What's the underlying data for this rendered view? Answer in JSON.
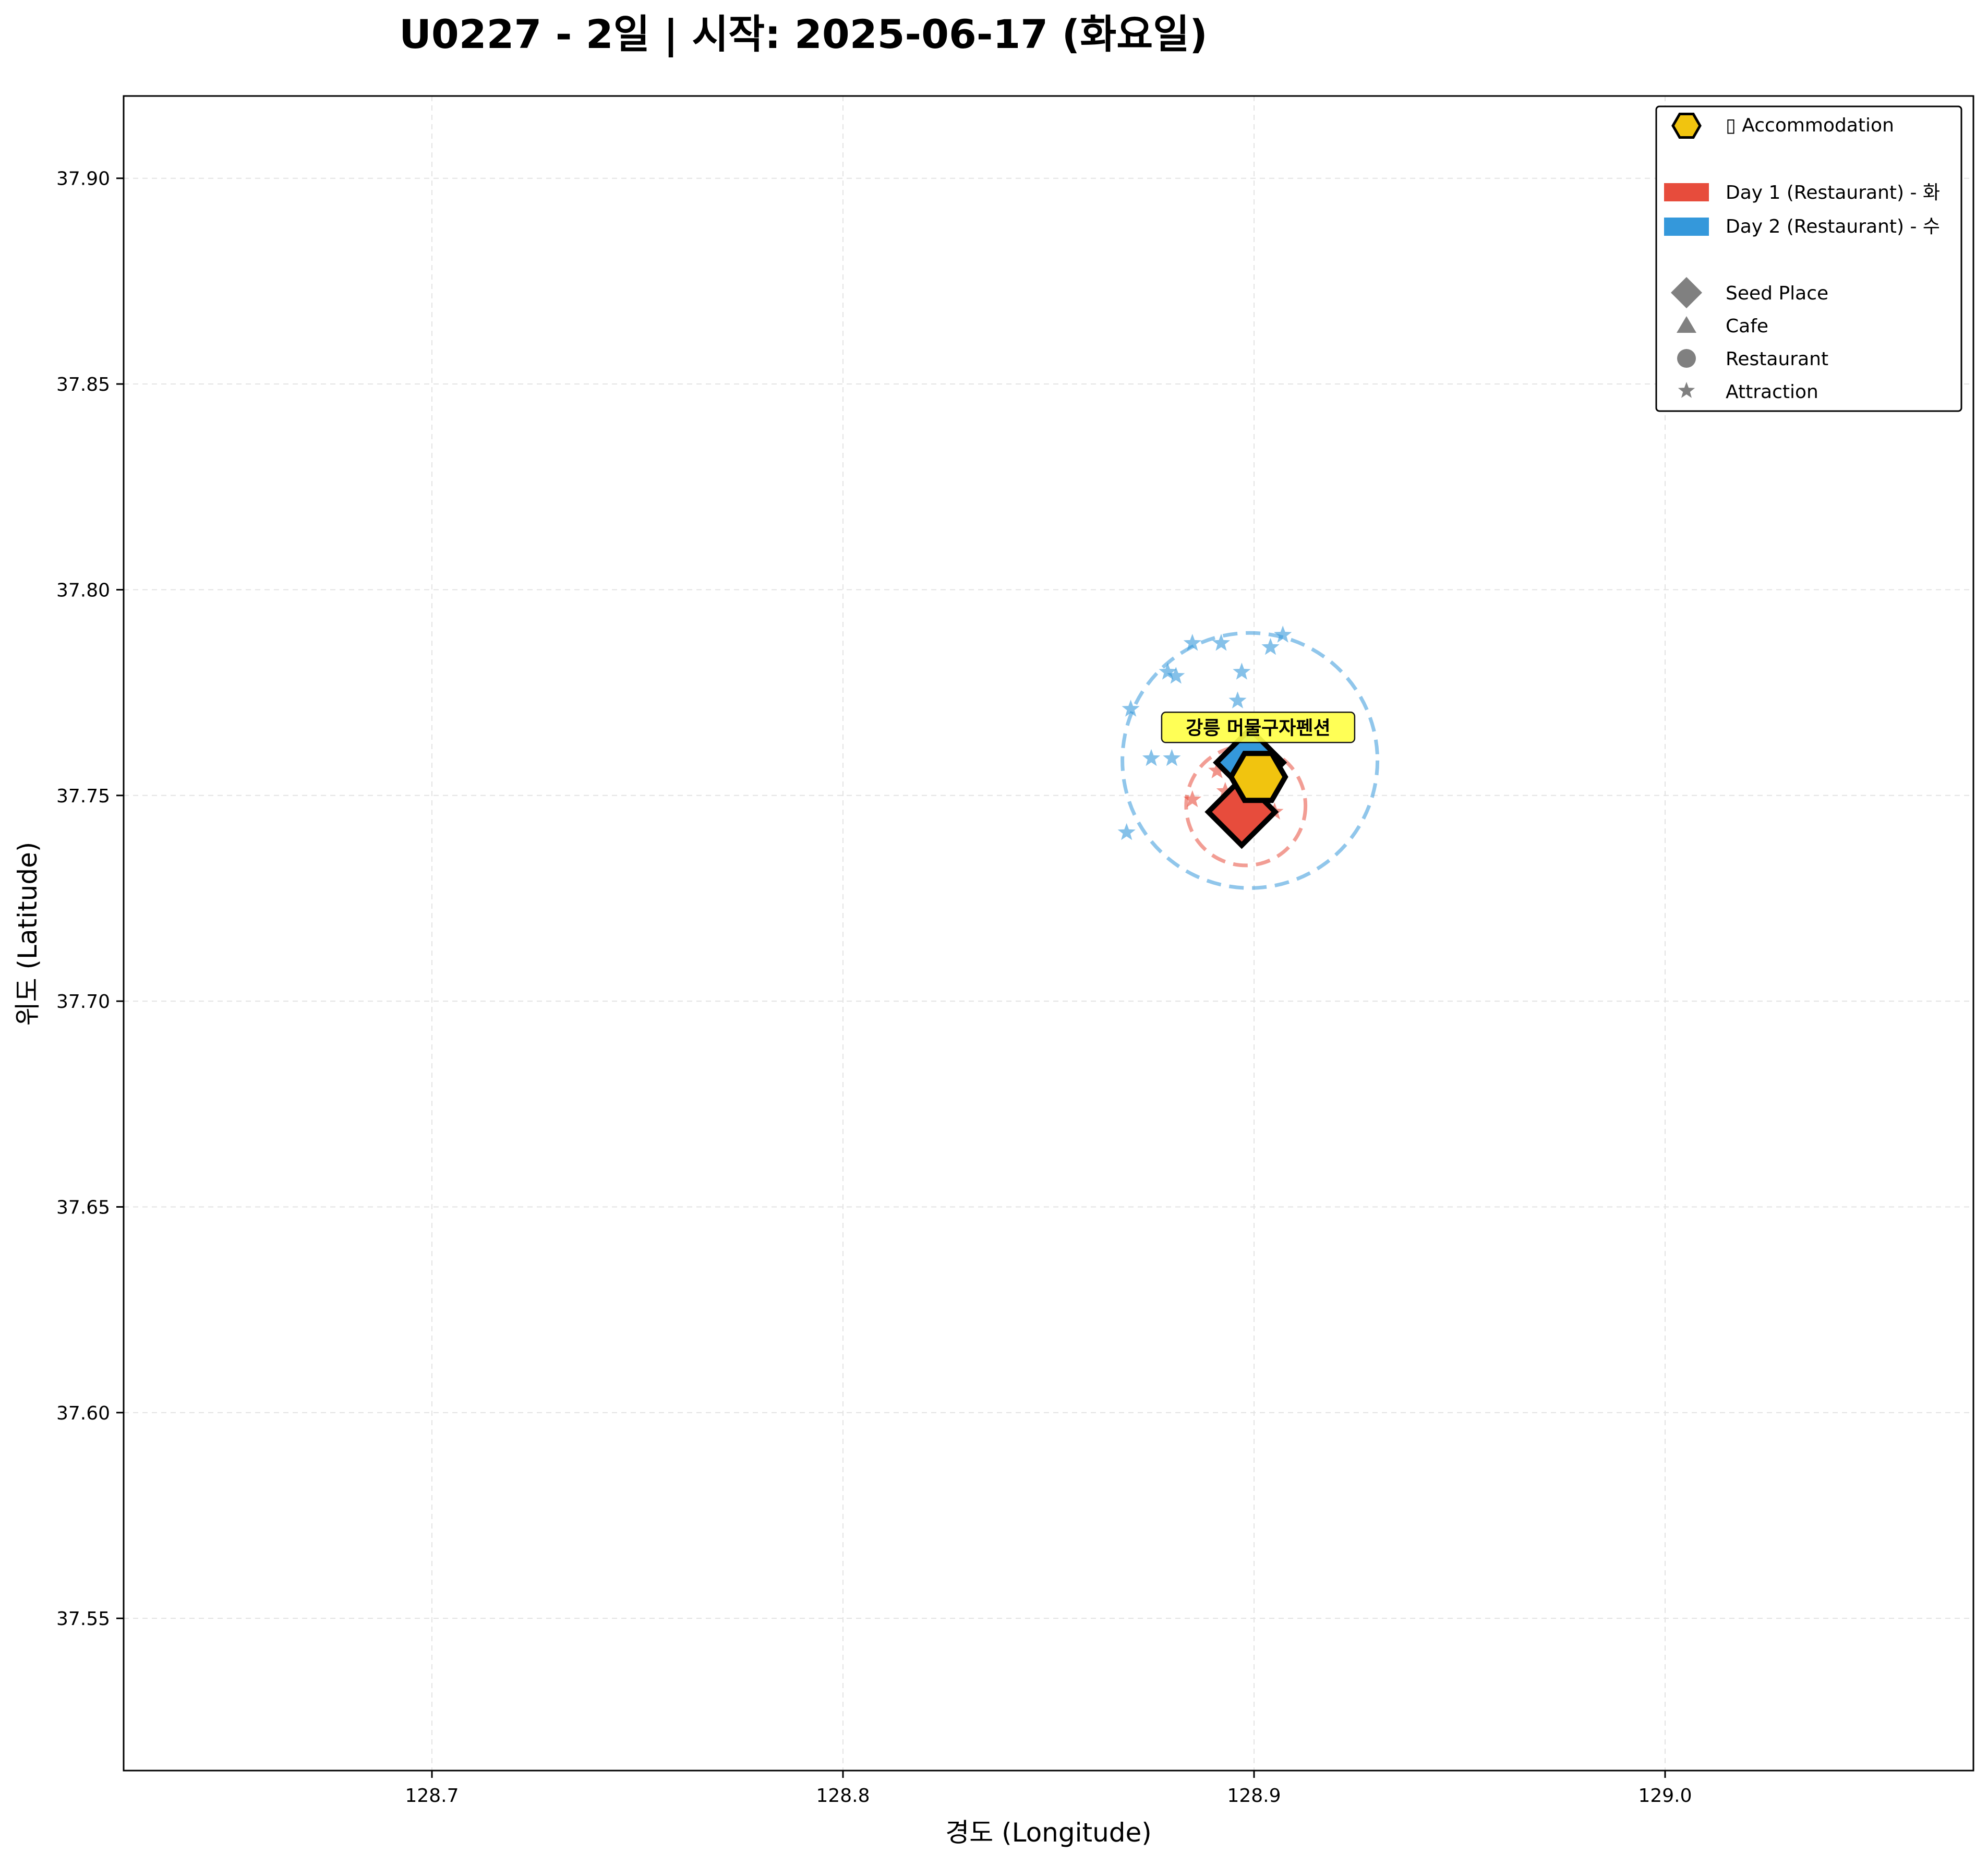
{
  "chart_data": {
    "type": "scatter",
    "title": "U0227 - 2일 | 시작: 2025-06-17 (화요일)",
    "xlabel": "경도 (Longitude)",
    "ylabel": "위도 (Latitude)",
    "xlim": [
      128.625,
      129.075
    ],
    "ylim": [
      37.513,
      37.92
    ],
    "x_ticks": [
      "128.7",
      "128.8",
      "128.9",
      "129.0"
    ],
    "y_ticks": [
      "37.55",
      "37.60",
      "37.65",
      "37.70",
      "37.75",
      "37.80",
      "37.85",
      "37.90"
    ],
    "grid": true,
    "legend_position": "top-right",
    "legend": {
      "accommodation": "▯ Accommodation",
      "days": [
        "Day 1 (Restaurant) - 화",
        "Day 2 (Restaurant) - 수"
      ],
      "types": [
        "Seed Place",
        "Cafe",
        "Restaurant",
        "Attraction"
      ]
    },
    "colors": {
      "day1": "#e74c3c",
      "day2": "#3498db",
      "accommodation": "#f1c40f",
      "annotation_bg": "#ffff44",
      "legend_marker": "#808080"
    },
    "accommodation": {
      "name": "강릉 머물구자펜션",
      "lon": 128.901,
      "lat": 37.7545
    },
    "series": [
      {
        "name": "Day 1 (Restaurant) - 화",
        "color_key": "day1",
        "seed": {
          "lon": 128.897,
          "lat": 37.746
        },
        "radius_circle": {
          "lon": 128.898,
          "lat": 37.7475,
          "radius_lat": 0.0145
        },
        "attractions": [
          {
            "lon": 128.885,
            "lat": 37.749
          },
          {
            "lon": 128.891,
            "lat": 37.756
          },
          {
            "lon": 128.893,
            "lat": 37.751
          },
          {
            "lon": 128.905,
            "lat": 37.746
          },
          {
            "lon": 128.902,
            "lat": 37.752
          }
        ]
      },
      {
        "name": "Day 2 (Restaurant) - 수",
        "color_key": "day2",
        "seed": {
          "lon": 128.899,
          "lat": 37.758
        },
        "radius_circle": {
          "lon": 128.899,
          "lat": 37.7585,
          "radius_lat": 0.031
        },
        "attractions": [
          {
            "lon": 128.869,
            "lat": 37.741
          },
          {
            "lon": 128.87,
            "lat": 37.771
          },
          {
            "lon": 128.875,
            "lat": 37.759
          },
          {
            "lon": 128.88,
            "lat": 37.759
          },
          {
            "lon": 128.879,
            "lat": 37.78
          },
          {
            "lon": 128.881,
            "lat": 37.779
          },
          {
            "lon": 128.885,
            "lat": 37.787
          },
          {
            "lon": 128.892,
            "lat": 37.787
          },
          {
            "lon": 128.896,
            "lat": 37.773
          },
          {
            "lon": 128.897,
            "lat": 37.78
          },
          {
            "lon": 128.904,
            "lat": 37.786
          },
          {
            "lon": 128.907,
            "lat": 37.789
          }
        ]
      }
    ]
  }
}
